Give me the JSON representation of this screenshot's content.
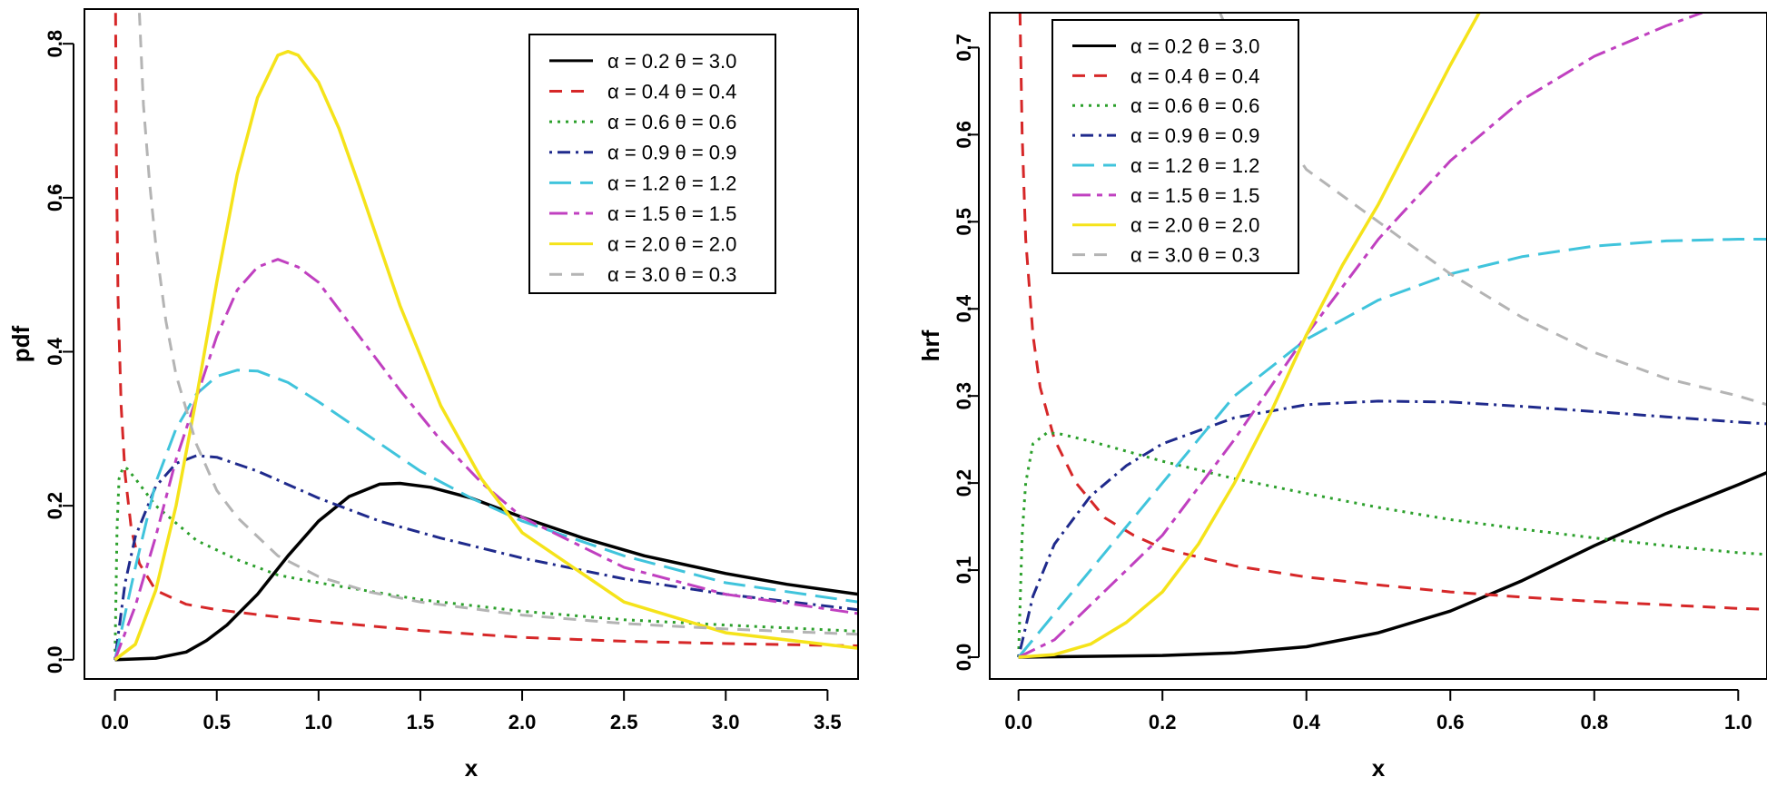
{
  "chart_data": [
    {
      "type": "line",
      "title": "",
      "xlabel": "x",
      "ylabel": "pdf",
      "xlim": [
        -0.15,
        3.65
      ],
      "ylim": [
        -0.025,
        0.845
      ],
      "xticks": [
        "0.0",
        "0.5",
        "1.0",
        "1.5",
        "2.0",
        "2.5",
        "3.0",
        "3.5"
      ],
      "xtick_values": [
        0,
        0.5,
        1,
        1.5,
        2,
        2.5,
        3,
        3.5
      ],
      "yticks": [
        "0.0",
        "0.2",
        "0.4",
        "0.6",
        "0.8"
      ],
      "ytick_values": [
        0,
        0.2,
        0.4,
        0.6,
        0.8
      ],
      "grid": false,
      "legend_position": "top-right",
      "series": [
        {
          "name": "α = 0.2  θ = 3.0",
          "color": "#000000",
          "dash": "solid",
          "x": [
            0,
            0.2,
            0.35,
            0.45,
            0.55,
            0.7,
            0.85,
            1.0,
            1.15,
            1.3,
            1.4,
            1.55,
            1.75,
            2.0,
            2.3,
            2.6,
            3.0,
            3.3,
            3.65
          ],
          "y": [
            0,
            0.002,
            0.01,
            0.025,
            0.045,
            0.085,
            0.135,
            0.18,
            0.212,
            0.228,
            0.229,
            0.224,
            0.21,
            0.185,
            0.158,
            0.135,
            0.112,
            0.098,
            0.085
          ]
        },
        {
          "name": "α = 0.4  θ = 0.4",
          "color": "#d62728",
          "dash": "dashed",
          "x": [
            0.003,
            0.007,
            0.015,
            0.03,
            0.05,
            0.08,
            0.12,
            0.2,
            0.35,
            0.5,
            0.75,
            1.0,
            1.5,
            2.0,
            2.5,
            3.0,
            3.65
          ],
          "y": [
            0.84,
            0.65,
            0.47,
            0.33,
            0.24,
            0.17,
            0.125,
            0.09,
            0.072,
            0.065,
            0.057,
            0.05,
            0.038,
            0.029,
            0.024,
            0.021,
            0.018
          ]
        },
        {
          "name": "α = 0.6  θ = 0.6",
          "color": "#2ca02c",
          "dash": "dotted",
          "x": [
            0,
            0.01,
            0.02,
            0.04,
            0.06,
            0.1,
            0.2,
            0.4,
            0.6,
            0.8,
            1.0,
            1.5,
            2.0,
            2.5,
            3.0,
            3.65
          ],
          "y": [
            0,
            0.17,
            0.235,
            0.25,
            0.248,
            0.235,
            0.2,
            0.155,
            0.13,
            0.11,
            0.1,
            0.078,
            0.063,
            0.052,
            0.045,
            0.037
          ]
        },
        {
          "name": "α = 0.9  θ = 0.9",
          "color": "#1f2a8c",
          "dash": "dashdot",
          "x": [
            0,
            0.05,
            0.1,
            0.2,
            0.3,
            0.4,
            0.5,
            0.7,
            1.0,
            1.3,
            1.6,
            2.0,
            2.5,
            3.0,
            3.65
          ],
          "y": [
            0,
            0.1,
            0.16,
            0.225,
            0.255,
            0.265,
            0.263,
            0.245,
            0.21,
            0.18,
            0.158,
            0.132,
            0.105,
            0.085,
            0.065
          ]
        },
        {
          "name": "α = 1.2  θ = 1.2",
          "color": "#40c4dc",
          "dash": "longdash",
          "x": [
            0,
            0.1,
            0.2,
            0.3,
            0.4,
            0.5,
            0.6,
            0.7,
            0.85,
            1.0,
            1.25,
            1.5,
            1.75,
            2.0,
            2.5,
            3.0,
            3.65
          ],
          "y": [
            0,
            0.12,
            0.23,
            0.3,
            0.345,
            0.368,
            0.376,
            0.375,
            0.36,
            0.335,
            0.29,
            0.245,
            0.21,
            0.18,
            0.135,
            0.1,
            0.075
          ]
        },
        {
          "name": "α = 1.5  θ = 1.5",
          "color": "#c040c0",
          "dash": "twodash",
          "x": [
            0,
            0.1,
            0.2,
            0.3,
            0.4,
            0.5,
            0.6,
            0.7,
            0.8,
            0.9,
            1.0,
            1.2,
            1.4,
            1.6,
            1.8,
            2.0,
            2.5,
            3.0,
            3.65
          ],
          "y": [
            0,
            0.07,
            0.16,
            0.26,
            0.34,
            0.42,
            0.48,
            0.51,
            0.52,
            0.51,
            0.49,
            0.42,
            0.35,
            0.285,
            0.23,
            0.185,
            0.12,
            0.085,
            0.06
          ]
        },
        {
          "name": "α = 2.0  θ = 2.0",
          "color": "#f5e31a",
          "dash": "solid",
          "x": [
            0,
            0.1,
            0.2,
            0.3,
            0.4,
            0.5,
            0.6,
            0.7,
            0.8,
            0.85,
            0.9,
            1.0,
            1.1,
            1.2,
            1.4,
            1.6,
            1.8,
            2.0,
            2.5,
            3.0,
            3.65
          ],
          "y": [
            0,
            0.02,
            0.09,
            0.2,
            0.34,
            0.49,
            0.63,
            0.73,
            0.785,
            0.79,
            0.785,
            0.75,
            0.69,
            0.615,
            0.46,
            0.33,
            0.235,
            0.165,
            0.075,
            0.035,
            0.015
          ]
        },
        {
          "name": "α = 3.0  θ = 0.3",
          "color": "#b4b4b4",
          "dash": "dashed",
          "x": [
            0.12,
            0.14,
            0.17,
            0.2,
            0.25,
            0.3,
            0.4,
            0.5,
            0.6,
            0.8,
            1.0,
            1.25,
            1.5,
            2.0,
            2.5,
            3.0,
            3.65
          ],
          "y": [
            0.84,
            0.72,
            0.62,
            0.54,
            0.44,
            0.37,
            0.28,
            0.22,
            0.185,
            0.135,
            0.108,
            0.088,
            0.075,
            0.058,
            0.047,
            0.04,
            0.033
          ]
        }
      ]
    },
    {
      "type": "line",
      "title": "",
      "xlabel": "x",
      "ylabel": "hrf",
      "xlim": [
        -0.04,
        1.04
      ],
      "ylim": [
        -0.025,
        0.74
      ],
      "xticks": [
        "0.0",
        "0.2",
        "0.4",
        "0.6",
        "0.8",
        "1.0"
      ],
      "xtick_values": [
        0,
        0.2,
        0.4,
        0.6,
        0.8,
        1.0
      ],
      "yticks": [
        "0.0",
        "0.1",
        "0.2",
        "0.3",
        "0.4",
        "0.5",
        "0.6",
        "0.7"
      ],
      "ytick_values": [
        0,
        0.1,
        0.2,
        0.3,
        0.4,
        0.5,
        0.6,
        0.7
      ],
      "grid": false,
      "legend_position": "top-left",
      "series": [
        {
          "name": "α = 0.2  θ = 3.0",
          "color": "#000000",
          "dash": "solid",
          "x": [
            0,
            0.2,
            0.3,
            0.4,
            0.5,
            0.6,
            0.7,
            0.8,
            0.9,
            1.0,
            1.04
          ],
          "y": [
            0,
            0.002,
            0.005,
            0.012,
            0.028,
            0.053,
            0.088,
            0.128,
            0.165,
            0.198,
            0.212
          ]
        },
        {
          "name": "α = 0.4  θ = 0.4",
          "color": "#d62728",
          "dash": "dashed",
          "x": [
            0.002,
            0.005,
            0.01,
            0.02,
            0.03,
            0.05,
            0.08,
            0.12,
            0.16,
            0.2,
            0.3,
            0.4,
            0.5,
            0.6,
            0.7,
            0.8,
            0.9,
            1.0,
            1.04
          ],
          "y": [
            0.74,
            0.6,
            0.48,
            0.37,
            0.31,
            0.25,
            0.2,
            0.16,
            0.14,
            0.125,
            0.105,
            0.092,
            0.083,
            0.075,
            0.069,
            0.064,
            0.06,
            0.056,
            0.055
          ]
        },
        {
          "name": "α = 0.6  θ = 0.6",
          "color": "#2ca02c",
          "dash": "dotted",
          "x": [
            0,
            0.005,
            0.01,
            0.02,
            0.04,
            0.06,
            0.1,
            0.2,
            0.3,
            0.4,
            0.5,
            0.6,
            0.7,
            0.8,
            0.9,
            1.0,
            1.04
          ],
          "y": [
            0,
            0.14,
            0.2,
            0.245,
            0.258,
            0.256,
            0.248,
            0.225,
            0.205,
            0.188,
            0.172,
            0.158,
            0.147,
            0.137,
            0.128,
            0.12,
            0.118
          ]
        },
        {
          "name": "α = 0.9  θ = 0.9",
          "color": "#1f2a8c",
          "dash": "dashdot",
          "x": [
            0,
            0.02,
            0.05,
            0.1,
            0.15,
            0.2,
            0.3,
            0.4,
            0.5,
            0.6,
            0.7,
            0.8,
            0.9,
            1.0,
            1.04
          ],
          "y": [
            0,
            0.07,
            0.13,
            0.185,
            0.22,
            0.245,
            0.275,
            0.29,
            0.294,
            0.293,
            0.288,
            0.282,
            0.276,
            0.27,
            0.268
          ]
        },
        {
          "name": "α = 1.2  θ = 1.2",
          "color": "#40c4dc",
          "dash": "longdash",
          "x": [
            0,
            0.05,
            0.1,
            0.2,
            0.3,
            0.4,
            0.5,
            0.6,
            0.7,
            0.8,
            0.9,
            1.0,
            1.04
          ],
          "y": [
            0,
            0.05,
            0.1,
            0.2,
            0.3,
            0.365,
            0.41,
            0.44,
            0.46,
            0.472,
            0.478,
            0.48,
            0.48
          ]
        },
        {
          "name": "α = 1.5  θ = 1.5",
          "color": "#c040c0",
          "dash": "twodash",
          "x": [
            0,
            0.05,
            0.1,
            0.15,
            0.2,
            0.3,
            0.4,
            0.5,
            0.6,
            0.7,
            0.8,
            0.9,
            0.95
          ],
          "y": [
            0,
            0.02,
            0.06,
            0.1,
            0.14,
            0.25,
            0.37,
            0.48,
            0.57,
            0.64,
            0.69,
            0.725,
            0.74
          ]
        },
        {
          "name": "α = 2.0  θ = 2.0",
          "color": "#f5e31a",
          "dash": "solid",
          "x": [
            0,
            0.05,
            0.1,
            0.15,
            0.2,
            0.25,
            0.3,
            0.35,
            0.4,
            0.45,
            0.5,
            0.55,
            0.6,
            0.64
          ],
          "y": [
            0,
            0.003,
            0.015,
            0.04,
            0.075,
            0.13,
            0.2,
            0.28,
            0.37,
            0.45,
            0.52,
            0.6,
            0.68,
            0.74
          ]
        },
        {
          "name": "α = 3.0  θ = 0.3",
          "color": "#b4b4b4",
          "dash": "dashed",
          "x": [
            0.28,
            0.3,
            0.35,
            0.4,
            0.5,
            0.6,
            0.7,
            0.8,
            0.9,
            1.0,
            1.04
          ],
          "y": [
            0.74,
            0.7,
            0.62,
            0.56,
            0.5,
            0.44,
            0.39,
            0.35,
            0.32,
            0.3,
            0.29
          ]
        }
      ]
    }
  ]
}
